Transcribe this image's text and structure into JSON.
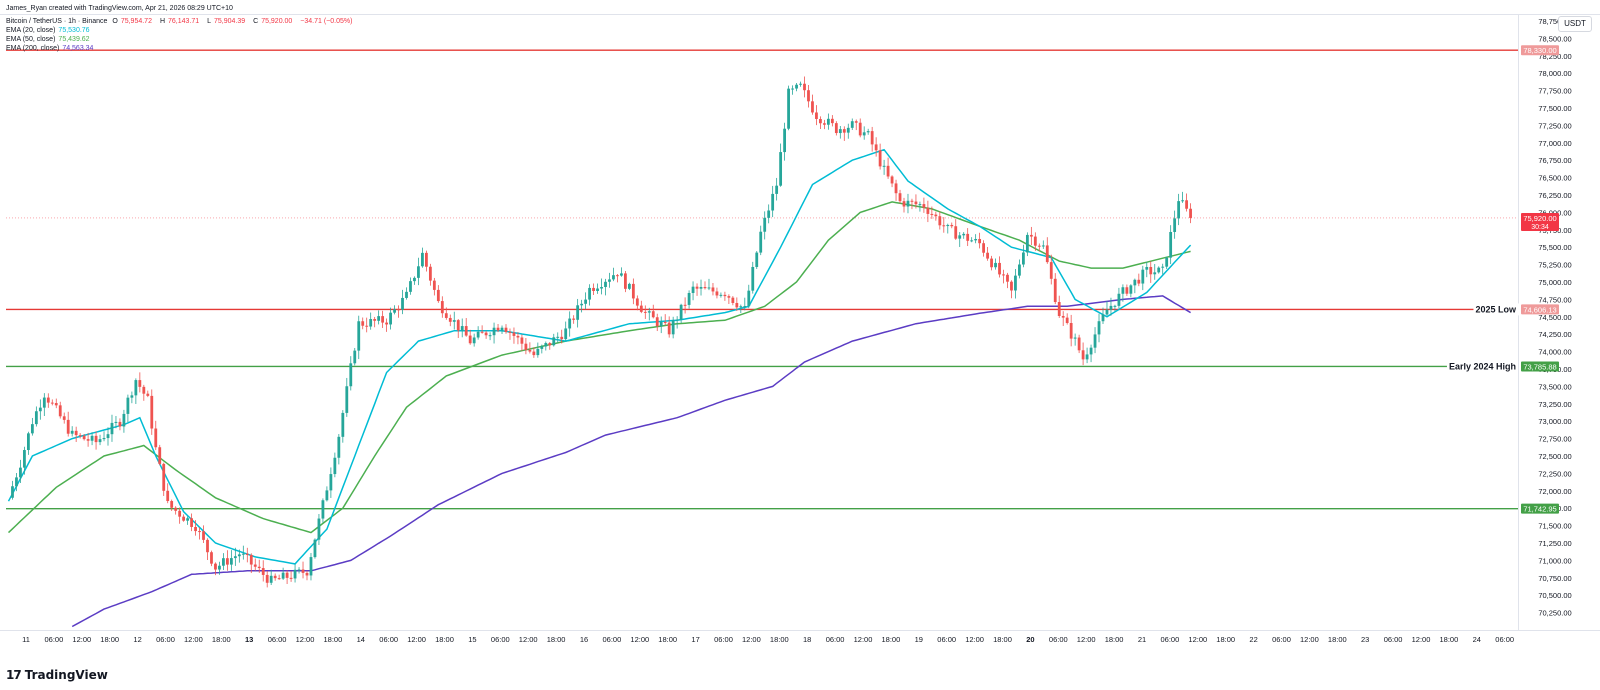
{
  "header": {
    "credit": "James_Ryan created with TradingView.com, Apr 21, 2026 08:29 UTC+10",
    "symbol": "Bitcoin / TetherUS · 1h · Binance",
    "ohlc": {
      "o_label": "O",
      "o_value": "75,954.72",
      "h_label": "H",
      "h_value": "76,143.71",
      "l_label": "L",
      "l_value": "75,904.39",
      "c_label": "C",
      "c_value": "75,920.00",
      "change": "−34.71 (−0.05%)"
    },
    "indicators": [
      {
        "label": "EMA (20, close)",
        "value": "75,530.76",
        "color": "#00bcd4"
      },
      {
        "label": "EMA (50, close)",
        "value": "75,439.62",
        "color": "#4caf50"
      },
      {
        "label": "EMA (200, close)",
        "value": "74,563.34",
        "color": "#5b3cc4"
      }
    ]
  },
  "unit": "USDT",
  "watermark": "TradingView",
  "colors": {
    "up": "#26a69a",
    "down": "#ef5350",
    "ema20": "#00bcd4",
    "ema50": "#4caf50",
    "ema200": "#5b3cc4",
    "red_line": "#e53935",
    "green_line": "#43a047",
    "price_tag": "#f23645"
  },
  "chart_data": {
    "type": "candlestick",
    "title": "Bitcoin / TetherUS · 1h · Binance",
    "ylim": [
      70000,
      78850
    ],
    "y_ticks": [
      "70,250.00",
      "70,500.00",
      "70,750.00",
      "71,000.00",
      "71,250.00",
      "71,500.00",
      "71,750.00",
      "72,000.00",
      "72,250.00",
      "72,500.00",
      "72,750.00",
      "73,000.00",
      "73,250.00",
      "73,500.00",
      "73,750.00",
      "74,000.00",
      "74,250.00",
      "74,500.00",
      "74,750.00",
      "75,000.00",
      "75,250.00",
      "75,500.00",
      "75,750.00",
      "76,000.00",
      "76,250.00",
      "76,500.00",
      "76,750.00",
      "77,000.00",
      "77,250.00",
      "77,500.00",
      "77,750.00",
      "78,000.00",
      "78,250.00",
      "78,500.00",
      "78,750.00"
    ],
    "x_ticks": [
      "11",
      "06:00",
      "12:00",
      "18:00",
      "12",
      "06:00",
      "12:00",
      "18:00",
      "13",
      "06:00",
      "12:00",
      "18:00",
      "14",
      "06:00",
      "12:00",
      "18:00",
      "15",
      "06:00",
      "12:00",
      "18:00",
      "16",
      "06:00",
      "12:00",
      "18:00",
      "17",
      "06:00",
      "12:00",
      "18:00",
      "18",
      "06:00",
      "12:00",
      "18:00",
      "19",
      "06:00",
      "12:00",
      "18:00",
      "20",
      "06:00",
      "12:00",
      "18:00",
      "21",
      "06:00",
      "12:00",
      "18:00",
      "22",
      "06:00",
      "12:00",
      "18:00",
      "23",
      "06:00",
      "12:00",
      "18:00",
      "24",
      "06:00"
    ],
    "bold_x_ticks": [
      "13",
      "20"
    ],
    "horizontal_levels": [
      {
        "value": 78330.0,
        "label": "",
        "tag": "78,330.00",
        "color": "#e53935"
      },
      {
        "value": 74606.13,
        "label": "2025 Low",
        "tag": "74,606.13",
        "color": "#e53935"
      },
      {
        "value": 73785.88,
        "label": "Early 2024 High",
        "tag": "73,785.88",
        "color": "#43a047"
      },
      {
        "value": 71742.95,
        "label": "",
        "tag": "71,742.95",
        "color": "#43a047"
      }
    ],
    "last_price": {
      "value": 75920.0,
      "tag": "75,920.00",
      "countdown": "30:34"
    },
    "anchors": [
      [
        0,
        71900
      ],
      [
        3,
        72400
      ],
      [
        6,
        73000
      ],
      [
        9,
        73400
      ],
      [
        12,
        73150
      ],
      [
        16,
        72800
      ],
      [
        22,
        72700
      ],
      [
        28,
        73000
      ],
      [
        32,
        73600
      ],
      [
        35,
        73300
      ],
      [
        37,
        72600
      ],
      [
        40,
        71800
      ],
      [
        47,
        71500
      ],
      [
        52,
        70900
      ],
      [
        58,
        71100
      ],
      [
        66,
        70700
      ],
      [
        75,
        70850
      ],
      [
        79,
        71800
      ],
      [
        83,
        72800
      ],
      [
        88,
        74400
      ],
      [
        95,
        74450
      ],
      [
        100,
        74800
      ],
      [
        104,
        75400
      ],
      [
        108,
        74700
      ],
      [
        116,
        74150
      ],
      [
        124,
        74400
      ],
      [
        132,
        73950
      ],
      [
        140,
        74300
      ],
      [
        146,
        74900
      ],
      [
        153,
        75150
      ],
      [
        160,
        74550
      ],
      [
        166,
        74300
      ],
      [
        172,
        74900
      ],
      [
        180,
        74850
      ],
      [
        185,
        74600
      ],
      [
        189,
        75700
      ],
      [
        193,
        76400
      ],
      [
        196,
        77700
      ],
      [
        199,
        77800
      ],
      [
        203,
        77400
      ],
      [
        208,
        77200
      ],
      [
        212,
        77250
      ],
      [
        216,
        77100
      ],
      [
        220,
        76600
      ],
      [
        224,
        76150
      ],
      [
        230,
        76100
      ],
      [
        236,
        75750
      ],
      [
        244,
        75550
      ],
      [
        252,
        74850
      ],
      [
        256,
        75700
      ],
      [
        260,
        75500
      ],
      [
        264,
        74550
      ],
      [
        268,
        74150
      ],
      [
        270,
        73900
      ],
      [
        276,
        74600
      ],
      [
        280,
        74850
      ],
      [
        286,
        75150
      ],
      [
        290,
        75150
      ],
      [
        294,
        76200
      ],
      [
        297,
        75920
      ]
    ],
    "ema_anchors": {
      "ema20": [
        [
          0,
          71850
        ],
        [
          6,
          72500
        ],
        [
          16,
          72750
        ],
        [
          29,
          72950
        ],
        [
          33,
          73050
        ],
        [
          37,
          72500
        ],
        [
          44,
          71700
        ],
        [
          52,
          71250
        ],
        [
          62,
          71050
        ],
        [
          72,
          70950
        ],
        [
          80,
          71450
        ],
        [
          88,
          72650
        ],
        [
          95,
          73700
        ],
        [
          103,
          74150
        ],
        [
          112,
          74300
        ],
        [
          124,
          74300
        ],
        [
          140,
          74150
        ],
        [
          156,
          74400
        ],
        [
          168,
          74450
        ],
        [
          180,
          74560
        ],
        [
          186,
          74650
        ],
        [
          194,
          75500
        ],
        [
          202,
          76400
        ],
        [
          212,
          76750
        ],
        [
          220,
          76900
        ],
        [
          226,
          76450
        ],
        [
          236,
          76050
        ],
        [
          244,
          75800
        ],
        [
          252,
          75500
        ],
        [
          262,
          75350
        ],
        [
          268,
          74750
        ],
        [
          276,
          74500
        ],
        [
          286,
          74850
        ],
        [
          297,
          75530
        ]
      ],
      "ema50": [
        [
          0,
          71400
        ],
        [
          12,
          72050
        ],
        [
          24,
          72500
        ],
        [
          34,
          72650
        ],
        [
          42,
          72300
        ],
        [
          52,
          71900
        ],
        [
          64,
          71600
        ],
        [
          76,
          71400
        ],
        [
          84,
          71750
        ],
        [
          92,
          72500
        ],
        [
          100,
          73200
        ],
        [
          110,
          73650
        ],
        [
          124,
          73950
        ],
        [
          140,
          74150
        ],
        [
          156,
          74300
        ],
        [
          168,
          74400
        ],
        [
          180,
          74450
        ],
        [
          190,
          74650
        ],
        [
          198,
          75000
        ],
        [
          206,
          75600
        ],
        [
          214,
          76000
        ],
        [
          222,
          76150
        ],
        [
          232,
          76050
        ],
        [
          244,
          75800
        ],
        [
          254,
          75600
        ],
        [
          264,
          75300
        ],
        [
          272,
          75200
        ],
        [
          280,
          75200
        ],
        [
          297,
          75440
        ]
      ],
      "ema200": [
        [
          16,
          70050
        ],
        [
          24,
          70300
        ],
        [
          36,
          70550
        ],
        [
          46,
          70800
        ],
        [
          60,
          70850
        ],
        [
          76,
          70850
        ],
        [
          86,
          71000
        ],
        [
          96,
          71350
        ],
        [
          108,
          71800
        ],
        [
          124,
          72250
        ],
        [
          140,
          72550
        ],
        [
          150,
          72800
        ],
        [
          168,
          73050
        ],
        [
          180,
          73300
        ],
        [
          192,
          73500
        ],
        [
          200,
          73850
        ],
        [
          212,
          74150
        ],
        [
          228,
          74400
        ],
        [
          244,
          74550
        ],
        [
          256,
          74650
        ],
        [
          266,
          74650
        ],
        [
          280,
          74750
        ],
        [
          290,
          74800
        ],
        [
          297,
          74560
        ]
      ]
    }
  }
}
